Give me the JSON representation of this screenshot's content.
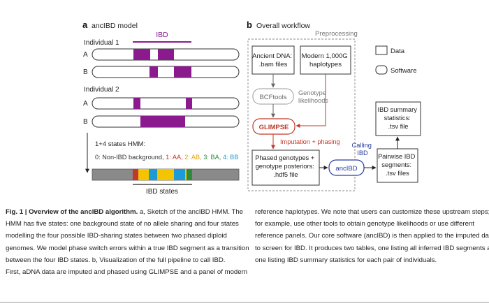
{
  "panel_a": {
    "letter": "a",
    "title": "ancIBD model",
    "ibd_label": "IBD",
    "individual1": "Individual 1",
    "individual2": "Individual 2",
    "hap_a": "A",
    "hap_b": "B",
    "hmm_title": "1+4 states HMM:",
    "hmm_states": [
      {
        "text": "0: Non-IBD background, ",
        "color": "#333333"
      },
      {
        "text": "1: AA, ",
        "color": "#c0392b"
      },
      {
        "text": "2: AB, ",
        "color": "#e6a100"
      },
      {
        "text": "3: BA, ",
        "color": "#2e8b3a"
      },
      {
        "text": "4: BB",
        "color": "#1e9ad6"
      }
    ],
    "ibd_states_label": "IBD states",
    "colors": {
      "purple": "#8b1a8f",
      "state_red": "#c0392b",
      "state_yellow": "#f5c400",
      "state_blue": "#1e9ad6",
      "state_green": "#2e8b3a",
      "background_gray": "#8a8a8a"
    }
  },
  "panel_b": {
    "letter": "b",
    "title": "Overall workflow",
    "preprocessing": "Preprocessing",
    "ancient_dna": [
      "Ancient DNA:",
      ".bam files"
    ],
    "modern": [
      "Modern 1,000G",
      "haplotypes"
    ],
    "bcftools": "BCFtools",
    "genotype_likelihoods": [
      "Genotype",
      "likelihoods"
    ],
    "glimpse": "GLIMPSE",
    "imputation": "Imputation + phasing",
    "phased": [
      "Phased genotypes +",
      "genotype posteriors:",
      ".hdf5 file"
    ],
    "ancibd": "ancIBD",
    "calling": [
      "Calling",
      "IBD"
    ],
    "pairwise": [
      "Pairwise IBD",
      "segments:",
      ".tsv files"
    ],
    "summary": [
      "IBD summary",
      "statistics:",
      ".tsv file"
    ],
    "legend_data": "Data",
    "legend_software": "Software",
    "colors": {
      "red": "#c0392b",
      "blue": "#2a3d9a"
    }
  },
  "caption": {
    "bold": "Fig. 1 | Overview of the ancIBD algorithm.",
    "left_first": " a, Sketch of the ancIBD HMM. The",
    "left_lines": [
      "HMM has five states: one background state of no allele sharing and four states",
      "modelling the four possible IBD-sharing states between two phased diploid",
      "genomes. We model phase switch errors within a true IBD segment as a transition",
      "between the four IBD states. b, Visualization of the full pipeline to call IBD.",
      "First, aDNA data are imputed and phased using GLIMPSE and a panel of modern"
    ],
    "right_lines": [
      "reference haplotypes. We note that users can customize these upstream steps;",
      "for example, use other tools to obtain genotype likelihoods or use different",
      "reference panels. Our core software (ancIBD) is then applied to the imputed data",
      "to screen for IBD. It produces two tables, one listing all inferred IBD segments and",
      "one listing IBD summary statistics for each pair of individuals."
    ]
  }
}
